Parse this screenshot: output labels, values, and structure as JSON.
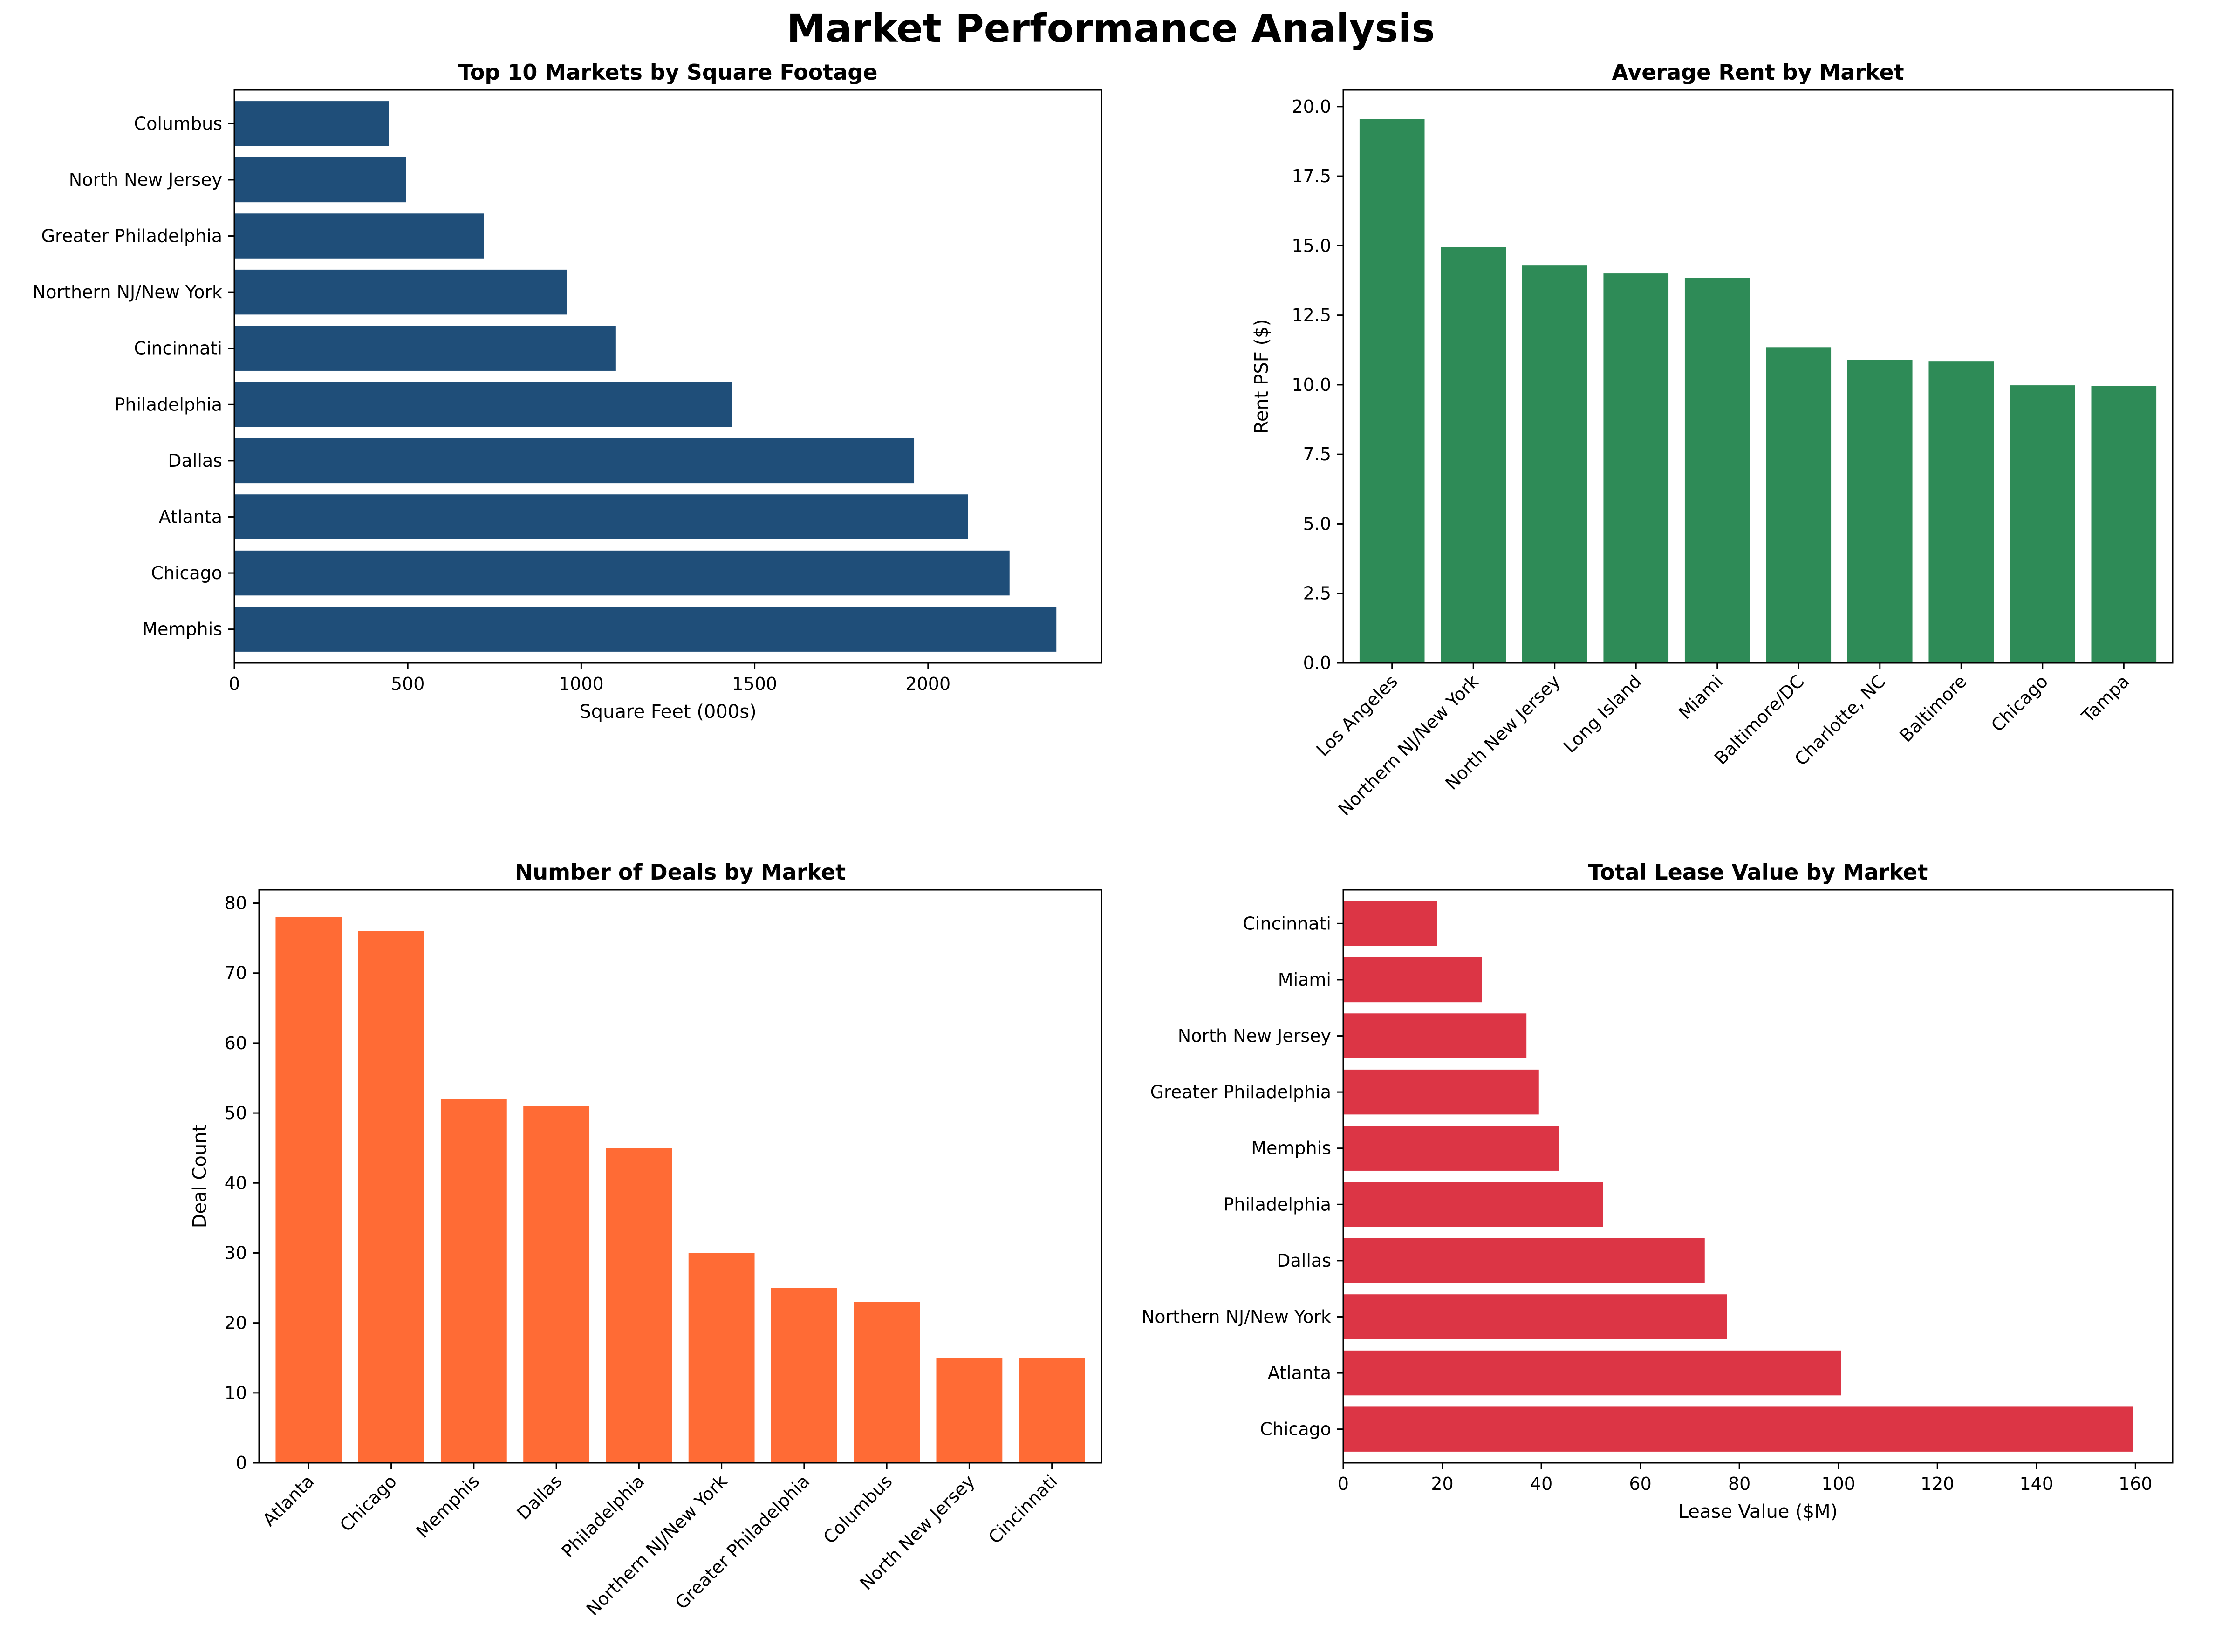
{
  "figure": {
    "title": "Market Performance Analysis"
  },
  "chart_data": [
    {
      "id": "sqft",
      "type": "bar",
      "orientation": "horizontal",
      "title": "Top 10 Markets by Square Footage",
      "xlabel": "Square Feet (000s)",
      "ylabel": "",
      "categories": [
        "Memphis",
        "Chicago",
        "Atlanta",
        "Dallas",
        "Philadelphia",
        "Cincinnati",
        "Northern NJ/New York",
        "Greater Philadelphia",
        "North New Jersey",
        "Columbus"
      ],
      "values": [
        2370,
        2235,
        2115,
        1960,
        1435,
        1100,
        960,
        720,
        495,
        445
      ],
      "xlim": [
        0,
        2500
      ],
      "ticks": [
        0,
        500,
        1000,
        1500,
        2000
      ],
      "tick_labels": [
        "0",
        "500",
        "1000",
        "1500",
        "2000"
      ],
      "color": "#1f4e79",
      "grid": false
    },
    {
      "id": "rent",
      "type": "bar",
      "orientation": "vertical",
      "title": "Average Rent by Market",
      "xlabel": "",
      "ylabel": "Rent PSF ($)",
      "categories": [
        "Los Angeles",
        "Northern NJ/New York",
        "North New Jersey",
        "Long Island",
        "Miami",
        "Baltimore/DC",
        "Charlotte, NC",
        "Baltimore",
        "Chicago",
        "Tampa"
      ],
      "values": [
        19.55,
        14.95,
        14.3,
        14.0,
        13.85,
        11.35,
        10.9,
        10.85,
        9.98,
        9.95
      ],
      "ylim": [
        0,
        20.6
      ],
      "ticks": [
        0,
        2.5,
        5,
        7.5,
        10,
        12.5,
        15,
        17.5,
        20
      ],
      "tick_labels": [
        "0.0",
        "2.5",
        "5.0",
        "7.5",
        "10.0",
        "12.5",
        "15.0",
        "17.5",
        "20.0"
      ],
      "color": "#2e8b57",
      "grid": false
    },
    {
      "id": "deals",
      "type": "bar",
      "orientation": "vertical",
      "title": "Number of Deals by Market",
      "xlabel": "",
      "ylabel": "Deal Count",
      "categories": [
        "Atlanta",
        "Chicago",
        "Memphis",
        "Dallas",
        "Philadelphia",
        "Northern NJ/New York",
        "Greater Philadelphia",
        "Columbus",
        "North New Jersey",
        "Cincinnati"
      ],
      "values": [
        78,
        76,
        52,
        51,
        45,
        30,
        25,
        23,
        15,
        15
      ],
      "ylim": [
        0,
        81.9
      ],
      "ticks": [
        0,
        10,
        20,
        30,
        40,
        50,
        60,
        70,
        80
      ],
      "tick_labels": [
        "0",
        "10",
        "20",
        "30",
        "40",
        "50",
        "60",
        "70",
        "80"
      ],
      "color": "#ff6b35",
      "grid": false
    },
    {
      "id": "lease",
      "type": "bar",
      "orientation": "horizontal",
      "title": "Total Lease Value by Market",
      "xlabel": "Lease Value ($M)",
      "ylabel": "",
      "categories": [
        "Chicago",
        "Atlanta",
        "Northern NJ/New York",
        "Dallas",
        "Philadelphia",
        "Memphis",
        "Greater Philadelphia",
        "North New Jersey",
        "Miami",
        "Cincinnati"
      ],
      "values": [
        159.5,
        100.5,
        77.5,
        73,
        52.5,
        43.5,
        39.5,
        37,
        28,
        19
      ],
      "xlim": [
        0,
        167.5
      ],
      "ticks": [
        0,
        20,
        40,
        60,
        80,
        100,
        120,
        140,
        160
      ],
      "tick_labels": [
        "0",
        "20",
        "40",
        "60",
        "80",
        "100",
        "120",
        "140",
        "160"
      ],
      "color": "#dc3545",
      "grid": false
    }
  ]
}
